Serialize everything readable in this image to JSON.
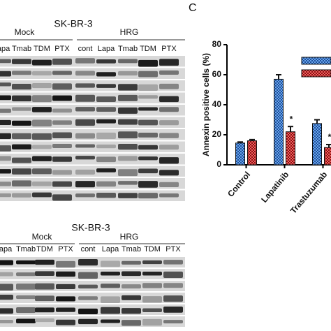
{
  "panel_label": "C",
  "blots": [
    {
      "cell_line": "SK-BR-3",
      "groups": [
        {
          "label": "Mock",
          "lanes": [
            "Lapa",
            "Tmab",
            "TDM",
            "PTX"
          ]
        },
        {
          "label": "HRG",
          "lanes": [
            "cont",
            "Lapa",
            "Tmab",
            "TDM",
            "PTX"
          ]
        }
      ]
    },
    {
      "cell_line": "SK-BR-3",
      "groups": [
        {
          "label": "Mock",
          "lanes": [
            "Lapa",
            "Tmab",
            "TDM",
            "PTX"
          ]
        },
        {
          "label": "HRG",
          "lanes": [
            "cont",
            "Lapa",
            "Tmab",
            "TDM",
            "PTX"
          ]
        }
      ]
    }
  ],
  "chart_data": {
    "type": "bar",
    "y_label": "Annexin positive cells (%)",
    "categories": [
      "Control",
      "Lapatinib",
      "Trastuzumab"
    ],
    "series": [
      {
        "color": "#3d7fd6",
        "values": [
          14.5,
          57,
          27.5
        ],
        "errors": [
          0.7,
          3,
          2.5
        ]
      },
      {
        "color": "#e02c2c",
        "values": [
          16,
          22,
          11.5
        ],
        "errors": [
          0.8,
          3.5,
          2
        ]
      }
    ],
    "annotations": [
      "*",
      "*"
    ],
    "ylim": [
      0,
      80
    ],
    "yticks": [
      0,
      20,
      40,
      60,
      80
    ]
  }
}
